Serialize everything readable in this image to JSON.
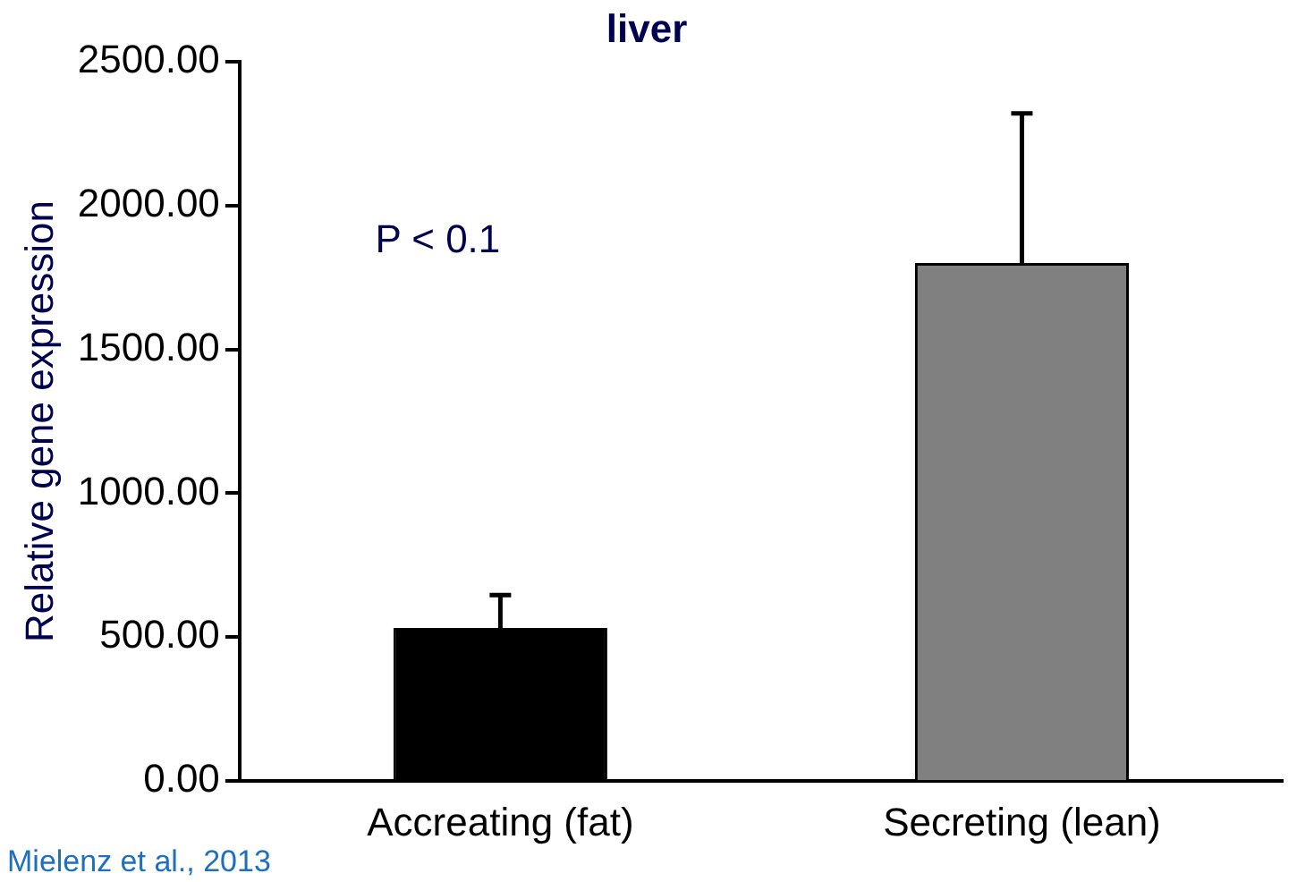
{
  "chart_data": {
    "type": "bar",
    "title": "liver",
    "ylabel": "Relative gene expression",
    "categories": [
      "Accreating (fat)",
      "Secreting (lean)"
    ],
    "values": [
      532,
      1800
    ],
    "colors": [
      "#000000",
      "#808080"
    ],
    "errors": [
      [
        532,
        646
      ],
      [
        1800,
        2320
      ]
    ],
    "ylim": [
      0,
      2500
    ],
    "yticks": [
      {
        "value": 0,
        "label": "0.00"
      },
      {
        "value": 500,
        "label": "500.00"
      },
      {
        "value": 1000,
        "label": "1000.00"
      },
      {
        "value": 1500,
        "label": "1500.00"
      },
      {
        "value": 2000,
        "label": "2000.00"
      },
      {
        "value": 2500,
        "label": "2500.00"
      }
    ],
    "grid": false,
    "legend": false,
    "annotations": [
      "P < 0.1",
      "Mielenz et al., 2013"
    ]
  }
}
